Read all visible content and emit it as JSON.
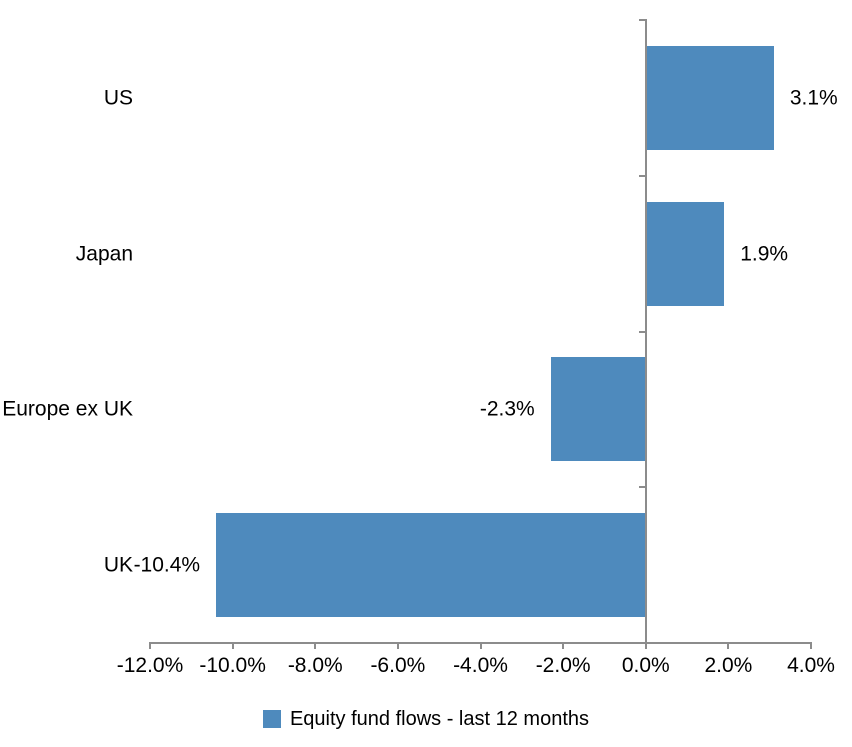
{
  "chart_data": {
    "type": "bar",
    "orientation": "horizontal",
    "title": "",
    "xlabel": "",
    "ylabel": "",
    "categories": [
      "US",
      "Japan",
      "Europe ex UK",
      "UK"
    ],
    "values": [
      3.1,
      1.9,
      -2.3,
      -10.4
    ],
    "value_labels": [
      "3.1%",
      "1.9%",
      "-2.3%",
      "-10.4%"
    ],
    "series": [
      {
        "name": "Equity fund flows - last 12 months",
        "values": [
          3.1,
          1.9,
          -2.3,
          -10.4
        ]
      }
    ],
    "xlim": [
      -12,
      4
    ],
    "x_tick_values": [
      -12,
      -10,
      -8,
      -6,
      -4,
      -2,
      0,
      2,
      4
    ],
    "x_tick_labels": [
      "-12.0%",
      "-10.0%",
      "-8.0%",
      "-6.0%",
      "-4.0%",
      "-2.0%",
      "0.0%",
      "2.0%",
      "4.0%"
    ],
    "grid": false,
    "legend_position": "bottom",
    "bar_color": "#4E8ABD",
    "axis_color": "#8C8C8C",
    "text_color": "#000000"
  },
  "legend": {
    "label": "Equity fund flows - last 12 months",
    "swatch_color": "#4E8ABD"
  }
}
